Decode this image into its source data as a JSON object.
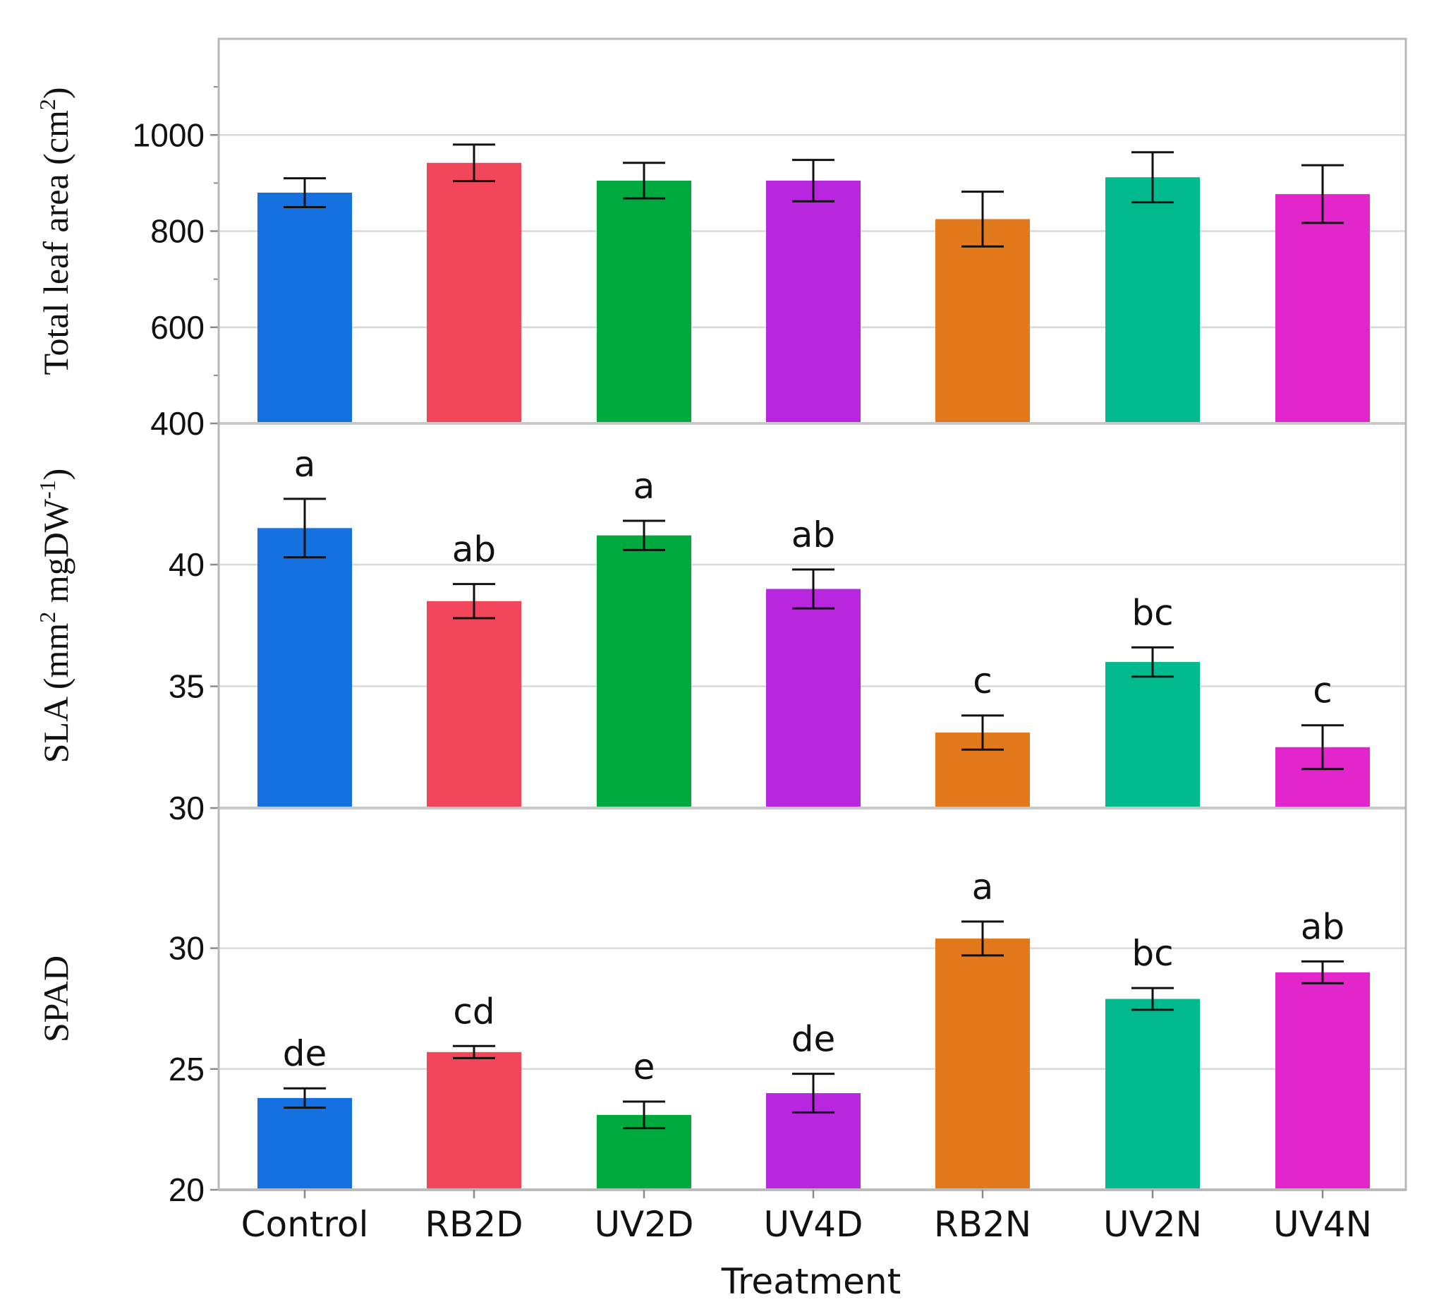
{
  "chart_data": {
    "type": "bar",
    "categories": [
      "Control",
      "RB2D",
      "UV2D",
      "UV4D",
      "RB2N",
      "UV2N",
      "UV4N"
    ],
    "colors": [
      "#1570e0",
      "#f2475a",
      "#00aa3f",
      "#b826e0",
      "#e27a1d",
      "#00b98c",
      "#e326cc"
    ],
    "xlabel": "Treatment",
    "panels": [
      {
        "ylabel_main": "Total leaf area (cm",
        "ylabel_sup": "2",
        "ylabel_end": ")",
        "ylim": [
          400,
          1200
        ],
        "ticks": [
          400,
          600,
          800,
          1000
        ],
        "tick_labels": [
          "400",
          "600",
          "800",
          "1000"
        ],
        "values": [
          880,
          942,
          905,
          905,
          825,
          912,
          877
        ],
        "errors": [
          30,
          38,
          37,
          43,
          57,
          52,
          60
        ],
        "letters": [
          "",
          "",
          "",
          "",
          "",
          "",
          ""
        ]
      },
      {
        "ylabel_main": "SLA (mm",
        "ylabel_sup": "2",
        "ylabel_mid": " mgDW",
        "ylabel_sup2": "-1",
        "ylabel_end": ")",
        "ylim": [
          30,
          45.8
        ],
        "ticks": [
          30,
          35,
          40
        ],
        "tick_labels": [
          "30",
          "35",
          "40"
        ],
        "values": [
          41.5,
          38.5,
          41.2,
          39.0,
          33.1,
          36.0,
          32.5
        ],
        "errors": [
          1.2,
          0.7,
          0.6,
          0.8,
          0.7,
          0.6,
          0.9
        ],
        "letters": [
          "a",
          "ab",
          "a",
          "ab",
          "c",
          "bc",
          "c"
        ]
      },
      {
        "ylabel_main": "SPAD",
        "ylim": [
          20,
          35.8
        ],
        "ticks": [
          20,
          25,
          30
        ],
        "tick_labels": [
          "20",
          "25",
          "30"
        ],
        "values": [
          23.8,
          25.7,
          23.1,
          24.0,
          30.4,
          27.9,
          29.0
        ],
        "errors": [
          0.4,
          0.25,
          0.55,
          0.8,
          0.7,
          0.45,
          0.45
        ],
        "letters": [
          "de",
          "cd",
          "e",
          "de",
          "a",
          "bc",
          "ab"
        ]
      }
    ]
  }
}
